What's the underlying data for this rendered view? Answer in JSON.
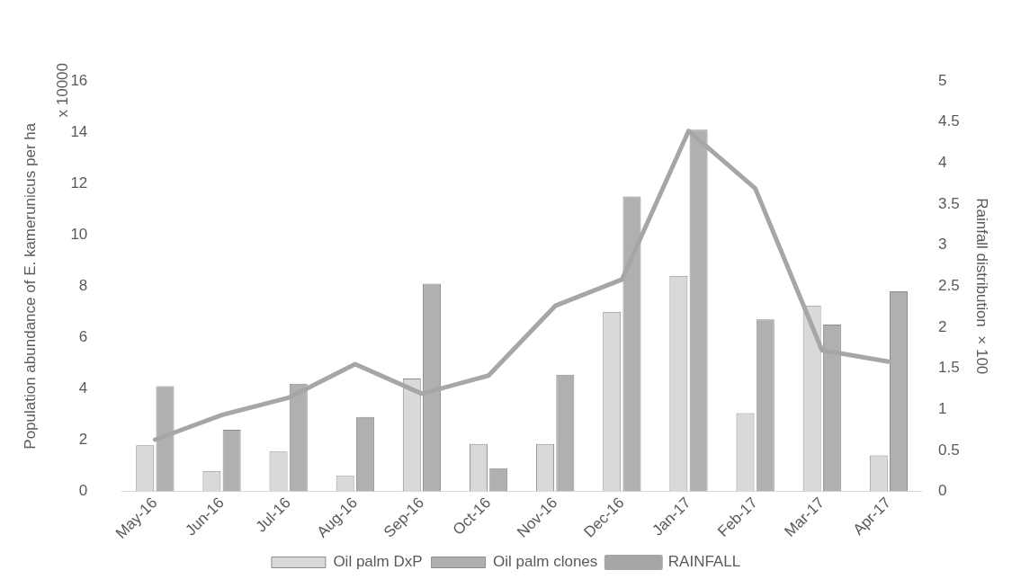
{
  "chart_data": {
    "type": "bar",
    "categories": [
      "May-16",
      "Jun-16",
      "Jul-16",
      "Aug-16",
      "Sep-16",
      "Oct-16",
      "Nov-16",
      "Dec-16",
      "Jan-17",
      "Feb-17",
      "Mar-17",
      "Apr-17"
    ],
    "series": [
      {
        "name": "Oil palm DxP",
        "color": "#d9d9d9",
        "values": [
          1.8,
          0.8,
          1.55,
          0.6,
          4.4,
          1.85,
          1.85,
          7.0,
          8.4,
          3.05,
          7.25,
          1.4
        ]
      },
      {
        "name": "Oil palm clones",
        "color": "#b0b0b0",
        "values": [
          4.1,
          2.4,
          4.2,
          2.9,
          8.1,
          0.9,
          4.55,
          11.5,
          14.1,
          6.7,
          6.5,
          7.8
        ]
      },
      {
        "name": "RAINFALL",
        "type": "line",
        "axis": "y2",
        "color": "#a6a6a6",
        "values": [
          0.63,
          0.93,
          1.14,
          1.55,
          1.19,
          1.41,
          2.26,
          2.58,
          4.39,
          3.69,
          1.72,
          1.58
        ]
      }
    ],
    "ylabel": "Population abundance of E. kamerunicus per ha",
    "y2label": "Rainfall distribution  × 100",
    "annotations": [
      "x 10000"
    ],
    "ylim": [
      0,
      16
    ],
    "yticks": [
      0,
      2,
      4,
      6,
      8,
      10,
      12,
      14,
      16
    ],
    "y2lim": [
      0,
      5
    ],
    "y2ticks": [
      0,
      0.5,
      1,
      1.5,
      2,
      2.5,
      3,
      3.5,
      4,
      4.5,
      5
    ],
    "grid": false,
    "legend": "bottom",
    "marker": "none",
    "line_style": "solid"
  }
}
